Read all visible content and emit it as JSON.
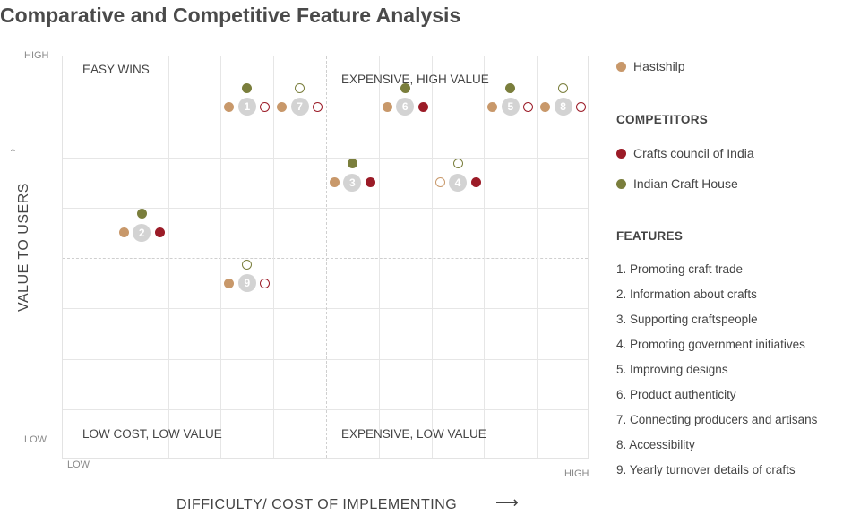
{
  "title": "Comparative and Competitive Feature Analysis",
  "axes": {
    "y_label": "VALUE TO USERS",
    "x_label": "DIFFICULTY/ COST OF IMPLEMENTING",
    "y_high": "HIGH",
    "y_low": "LOW",
    "x_low": "LOW",
    "x_high": "HIGH"
  },
  "quadrants": {
    "top_left": "EASY WINS",
    "top_right": "EXPENSIVE, HIGH VALUE",
    "bottom_left": "LOW COST, LOW VALUE",
    "bottom_right": "EXPENSIVE, LOW VALUE"
  },
  "colors": {
    "hastshilp": "#c8986a",
    "crafts_council": "#9b1b27",
    "indian_craft_house": "#7a7e3c",
    "number_badge": "#d3d3d3"
  },
  "legend": {
    "primary": "Hastshilp",
    "competitors_heading": "COMPETITORS",
    "competitors": [
      "Crafts council of India",
      "Indian Craft House"
    ],
    "features_heading": "FEATURES",
    "features": [
      "1. Promoting craft trade",
      "2.  Information about crafts",
      "3.  Supporting craftspeople",
      "4.  Promoting government initiatives",
      "5.  Improving designs",
      "6.  Product authenticity",
      "7.  Connecting producers and artisans",
      "8.  Accessibility",
      "9.  Yearly turnover details of crafts"
    ]
  },
  "chart_data": {
    "type": "scatter",
    "x_scale": "difficulty / cost of implementing (low to high, 10 grid columns)",
    "y_scale": "value to users (low to high, 8 grid rows)",
    "points": [
      {
        "feature": "1",
        "x": 3.5,
        "y": 7,
        "hastshilp": "filled",
        "crafts_council": "hollow",
        "indian_craft_house": "filled"
      },
      {
        "feature": "2",
        "x": 1.5,
        "y": 4.5,
        "hastshilp": "filled",
        "crafts_council": "filled",
        "indian_craft_house": "filled"
      },
      {
        "feature": "3",
        "x": 5.5,
        "y": 5.5,
        "hastshilp": "filled",
        "crafts_council": "filled",
        "indian_craft_house": "filled"
      },
      {
        "feature": "4",
        "x": 7.5,
        "y": 5.5,
        "hastshilp": "hollow",
        "crafts_council": "filled",
        "indian_craft_house": "hollow"
      },
      {
        "feature": "5",
        "x": 8.5,
        "y": 7,
        "hastshilp": "filled",
        "crafts_council": "hollow",
        "indian_craft_house": "filled"
      },
      {
        "feature": "6",
        "x": 6.5,
        "y": 7,
        "hastshilp": "filled",
        "crafts_council": "filled",
        "indian_craft_house": "filled"
      },
      {
        "feature": "7",
        "x": 4.5,
        "y": 7,
        "hastshilp": "filled",
        "crafts_council": "hollow",
        "indian_craft_house": "hollow"
      },
      {
        "feature": "8",
        "x": 9.5,
        "y": 7,
        "hastshilp": "filled",
        "crafts_council": "hollow",
        "indian_craft_house": "hollow"
      },
      {
        "feature": "9",
        "x": 3.5,
        "y": 3.5,
        "hastshilp": "filled",
        "crafts_council": "hollow",
        "indian_craft_house": "hollow"
      }
    ]
  }
}
